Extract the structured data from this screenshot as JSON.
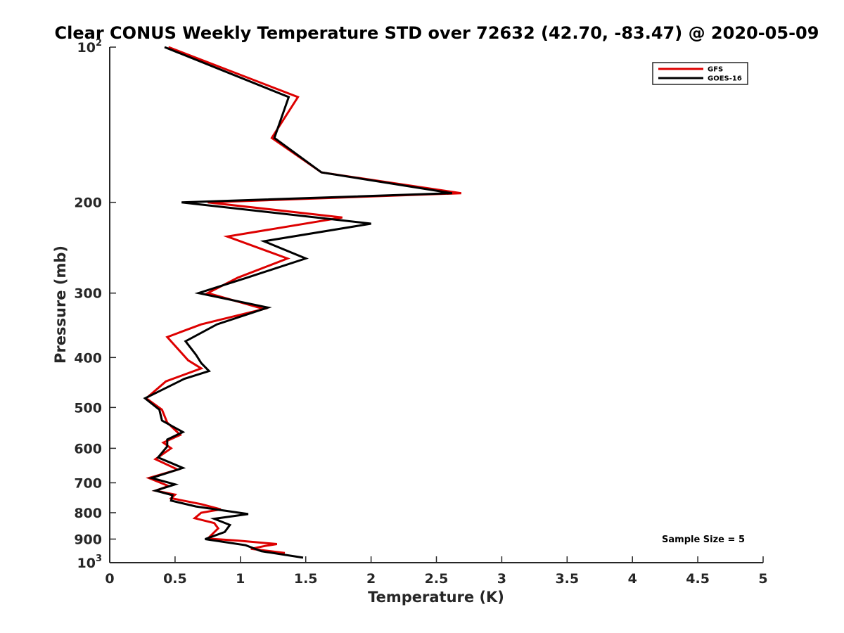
{
  "chart_data": {
    "type": "line",
    "title": "Clear CONUS Weekly Temperature STD over 72632 (42.70, -83.47) @ 2020-05-09",
    "xlabel": "Temperature (K)",
    "ylabel": "Pressure (mb)",
    "xlim": [
      0,
      5
    ],
    "ylim": [
      100,
      1000
    ],
    "yscale": "log",
    "y_reversed": true,
    "grid": false,
    "legend_position": "top-right",
    "xticks": [
      0,
      0.5,
      1,
      1.5,
      2,
      2.5,
      3,
      3.5,
      4,
      4.5,
      5
    ],
    "xtick_labels": [
      "0",
      "0.5",
      "1",
      "1.5",
      "2",
      "2.5",
      "3",
      "3.5",
      "4",
      "4.5",
      "5"
    ],
    "yticks": [
      {
        "value": 100,
        "base": "10",
        "exp": "2"
      },
      {
        "value": 200,
        "label": "200"
      },
      {
        "value": 300,
        "label": "300"
      },
      {
        "value": 400,
        "label": "400"
      },
      {
        "value": 500,
        "label": "500"
      },
      {
        "value": 600,
        "label": "600"
      },
      {
        "value": 700,
        "label": "700"
      },
      {
        "value": 800,
        "label": "800"
      },
      {
        "value": 900,
        "label": "900"
      },
      {
        "value": 1000,
        "base": "10",
        "exp": "3"
      }
    ],
    "annotation": "Sample Size = 5",
    "series": [
      {
        "name": "GFS",
        "color": "#dd0000",
        "points": [
          [
            0.45,
            100
          ],
          [
            1.44,
            125
          ],
          [
            1.24,
            150
          ],
          [
            1.62,
            175
          ],
          [
            2.69,
            192
          ],
          [
            0.75,
            200
          ],
          [
            1.78,
            214
          ],
          [
            0.9,
            233
          ],
          [
            1.36,
            257
          ],
          [
            0.98,
            280
          ],
          [
            0.75,
            300
          ],
          [
            1.18,
            322
          ],
          [
            0.7,
            345
          ],
          [
            0.44,
            365
          ],
          [
            0.6,
            405
          ],
          [
            0.7,
            420
          ],
          [
            0.43,
            445
          ],
          [
            0.28,
            480
          ],
          [
            0.4,
            505
          ],
          [
            0.44,
            535
          ],
          [
            0.54,
            565
          ],
          [
            0.41,
            585
          ],
          [
            0.47,
            600
          ],
          [
            0.35,
            630
          ],
          [
            0.52,
            660
          ],
          [
            0.3,
            685
          ],
          [
            0.45,
            710
          ],
          [
            0.35,
            725
          ],
          [
            0.5,
            738
          ],
          [
            0.47,
            750
          ],
          [
            0.7,
            770
          ],
          [
            0.85,
            788
          ],
          [
            0.7,
            800
          ],
          [
            0.65,
            820
          ],
          [
            0.8,
            838
          ],
          [
            0.83,
            858
          ],
          [
            0.75,
            898
          ],
          [
            0.98,
            906
          ],
          [
            1.28,
            920
          ],
          [
            1.19,
            928
          ],
          [
            1.08,
            940
          ],
          [
            1.34,
            958
          ]
        ]
      },
      {
        "name": "GOES-16",
        "color": "#000000",
        "points": [
          [
            0.42,
            100
          ],
          [
            1.37,
            125
          ],
          [
            1.26,
            150
          ],
          [
            1.62,
            175
          ],
          [
            2.62,
            192
          ],
          [
            0.55,
            200
          ],
          [
            2.0,
            220
          ],
          [
            1.18,
            238
          ],
          [
            1.5,
            257
          ],
          [
            1.05,
            280
          ],
          [
            0.68,
            300
          ],
          [
            1.21,
            320
          ],
          [
            0.82,
            345
          ],
          [
            0.58,
            372
          ],
          [
            0.66,
            395
          ],
          [
            0.7,
            410
          ],
          [
            0.76,
            425
          ],
          [
            0.57,
            440
          ],
          [
            0.27,
            480
          ],
          [
            0.38,
            505
          ],
          [
            0.4,
            530
          ],
          [
            0.56,
            558
          ],
          [
            0.44,
            577
          ],
          [
            0.44,
            595
          ],
          [
            0.37,
            625
          ],
          [
            0.56,
            655
          ],
          [
            0.32,
            685
          ],
          [
            0.5,
            705
          ],
          [
            0.35,
            725
          ],
          [
            0.48,
            740
          ],
          [
            0.47,
            758
          ],
          [
            0.66,
            778
          ],
          [
            1.06,
            805
          ],
          [
            0.8,
            822
          ],
          [
            0.92,
            845
          ],
          [
            0.88,
            872
          ],
          [
            0.73,
            900
          ],
          [
            1.04,
            925
          ],
          [
            1.16,
            950
          ],
          [
            1.48,
            978
          ]
        ]
      }
    ]
  }
}
